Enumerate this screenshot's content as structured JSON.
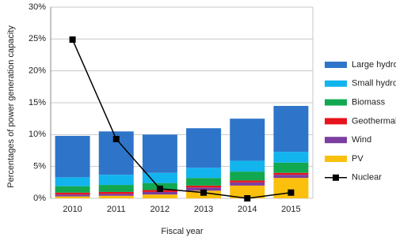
{
  "chart_data": {
    "type": "bar",
    "xlabel": "Fiscal year",
    "ylabel": "Percentages of power generation capacity",
    "categories": [
      "2010",
      "2011",
      "2012",
      "2013",
      "2014",
      "2015"
    ],
    "series": [
      {
        "name": "Large hydro",
        "type": "bar",
        "color": "#2e75c9",
        "values": [
          6.5,
          6.8,
          6.0,
          6.2,
          6.6,
          7.2
        ]
      },
      {
        "name": "Small hydro",
        "type": "bar",
        "color": "#12b4ee",
        "values": [
          1.4,
          1.6,
          1.6,
          1.6,
          1.7,
          1.7
        ]
      },
      {
        "name": "Biomass",
        "type": "bar",
        "color": "#12a84f",
        "values": [
          1.0,
          1.1,
          1.1,
          1.2,
          1.4,
          1.6
        ]
      },
      {
        "name": "Geothermal",
        "type": "bar",
        "color": "#e8141c",
        "values": [
          0.3,
          0.3,
          0.3,
          0.3,
          0.3,
          0.3
        ]
      },
      {
        "name": "Wind",
        "type": "bar",
        "color": "#7a3ea0",
        "values": [
          0.3,
          0.3,
          0.4,
          0.5,
          0.5,
          0.5
        ]
      },
      {
        "name": "PV",
        "type": "bar",
        "color": "#fbc00e",
        "values": [
          0.3,
          0.4,
          0.6,
          1.2,
          2.0,
          3.2
        ]
      },
      {
        "name": "Nuclear",
        "type": "line",
        "color": "#000000",
        "values": [
          24.9,
          9.3,
          1.5,
          0.9,
          0.0,
          0.9
        ]
      }
    ],
    "ylim": [
      0,
      30
    ],
    "yticks": [
      {
        "value": 0,
        "label": "0%"
      },
      {
        "value": 5,
        "label": "5%"
      },
      {
        "value": 10,
        "label": "10%"
      },
      {
        "value": 15,
        "label": "15%"
      },
      {
        "value": 20,
        "label": "20%"
      },
      {
        "value": 25,
        "label": "25%"
      },
      {
        "value": 30,
        "label": "30%"
      }
    ],
    "grid": true
  }
}
